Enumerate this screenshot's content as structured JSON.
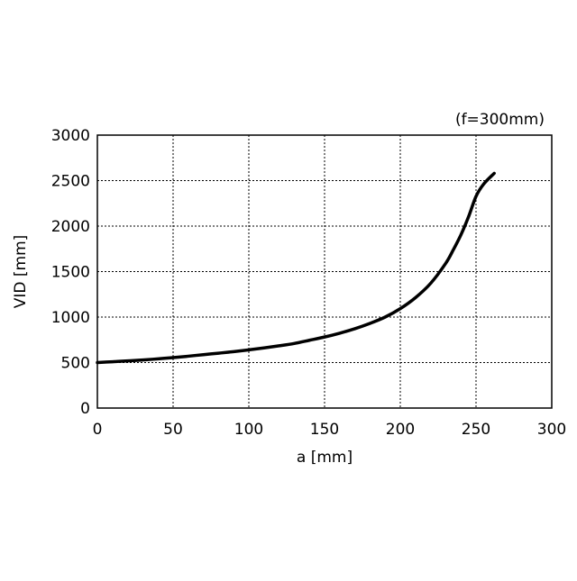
{
  "chart_data": {
    "type": "line",
    "title": "",
    "annotation": "(f=300mm)",
    "xlabel": "a [mm]",
    "ylabel": "VID [mm]",
    "xlim": [
      0,
      300
    ],
    "ylim": [
      0,
      3000
    ],
    "xticks": [
      0,
      50,
      100,
      150,
      200,
      250,
      300
    ],
    "yticks": [
      0,
      500,
      1000,
      1500,
      2000,
      2500,
      3000
    ],
    "grid": true,
    "legend": "none",
    "series": [
      {
        "color": "#000000",
        "x": [
          0,
          10,
          20,
          30,
          40,
          50,
          60,
          70,
          80,
          90,
          100,
          110,
          120,
          130,
          140,
          150,
          160,
          170,
          180,
          190,
          200,
          210,
          220,
          230,
          235,
          240,
          245,
          250,
          255,
          262
        ],
        "y": [
          500,
          509,
          518,
          528,
          541,
          554,
          570,
          587,
          603,
          620,
          640,
          661,
          684,
          710,
          745,
          781,
          823,
          872,
          931,
          1000,
          1093,
          1213,
          1370,
          1591,
          1739,
          1903,
          2100,
          2327,
          2461,
          2580
        ]
      }
    ]
  }
}
